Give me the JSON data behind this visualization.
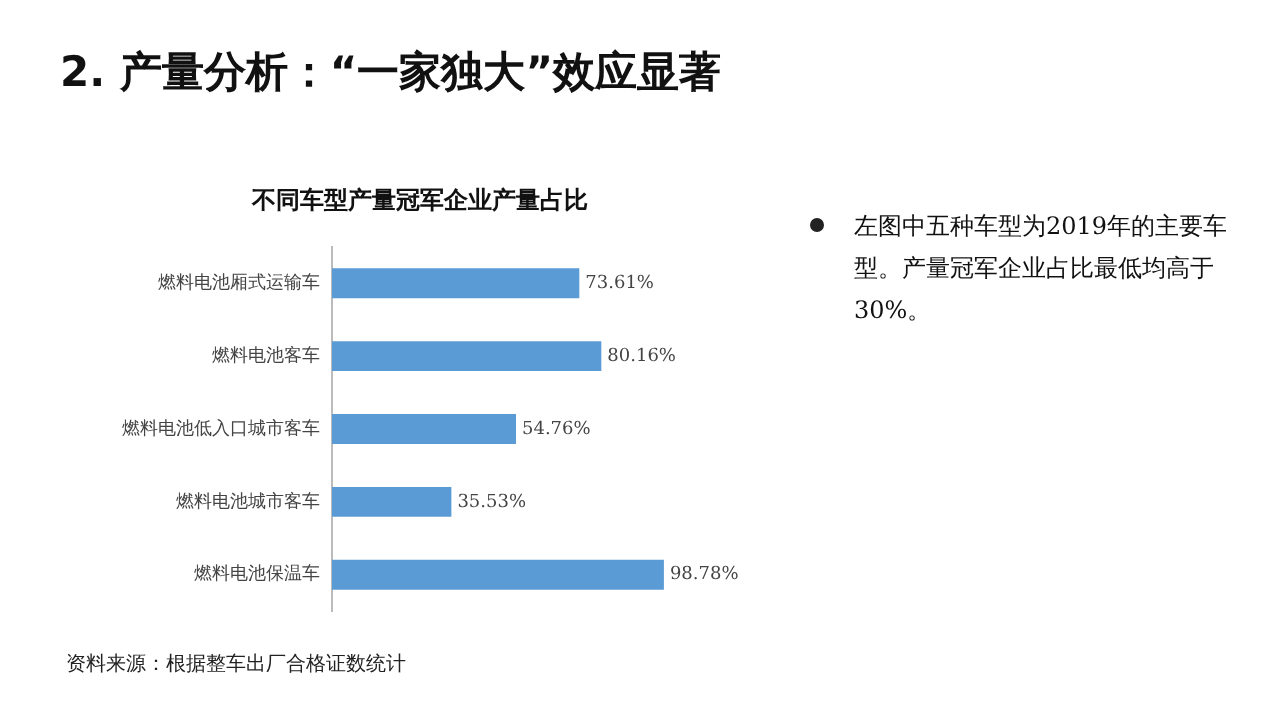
{
  "chart_data": {
    "type": "bar",
    "orientation": "horizontal",
    "title": "2. 产量分析：“一家独大”效应显著",
    "subtitle": "不同车型产量冠军企业产量占比",
    "categories": [
      "燃料电池厢式运输车",
      "燃料电池客车",
      "燃料电池低入口城市客车",
      "燃料电池城市客车",
      "燃料电池保温车"
    ],
    "values": [
      73.61,
      80.16,
      54.76,
      35.53,
      98.78
    ],
    "value_labels": [
      "73.61%",
      "80.16%",
      "54.76%",
      "35.53%",
      "98.78%"
    ],
    "color": "#5b9bd5",
    "grid": false,
    "legend": false,
    "tick_labels": "y",
    "annotations": [
      "左图中五种车型为2019年的主要车型。产量冠军企业占比最低均高于30%。",
      "资料来源：根据整车出厂合格证数统计"
    ]
  }
}
